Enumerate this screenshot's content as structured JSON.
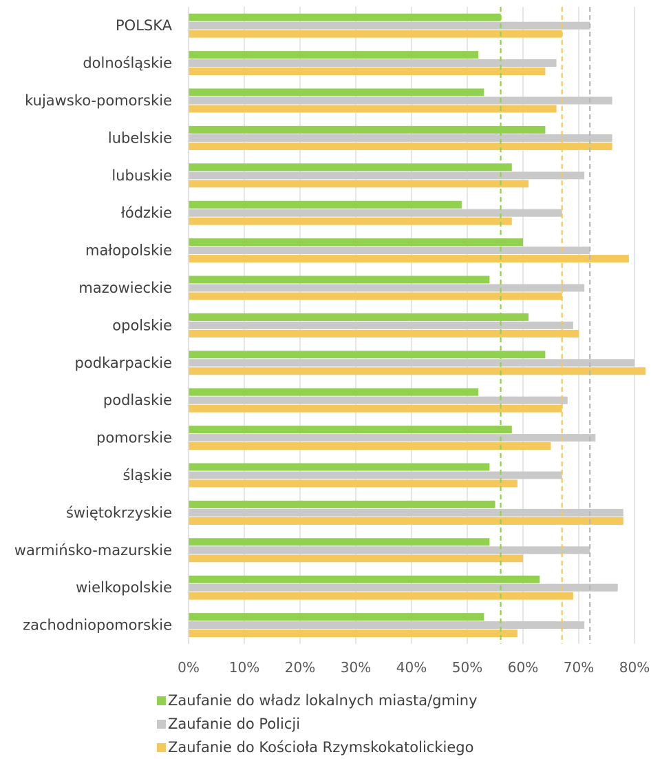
{
  "chart_data": {
    "type": "bar",
    "orientation": "horizontal",
    "categories": [
      "POLSKA",
      "dolnośląskie",
      "kujawsko-pomorskie",
      "lubelskie",
      "lubuskie",
      "łódzkie",
      "małopolskie",
      "mazowieckie",
      "opolskie",
      "podkarpackie",
      "podlaskie",
      "pomorskie",
      "śląskie",
      "świętokrzyskie",
      "warmińsko-mazurskie",
      "wielkopolskie",
      "zachodniopomorskie"
    ],
    "series": [
      {
        "name": "Zaufanie do władz lokalnych miasta/gminy",
        "color": "#92d050",
        "values": [
          56,
          52,
          53,
          64,
          58,
          49,
          60,
          54,
          61,
          64,
          52,
          58,
          54,
          55,
          54,
          63,
          53
        ]
      },
      {
        "name": "Zaufanie do Policji",
        "color": "#c9c9c9",
        "values": [
          72,
          66,
          76,
          76,
          71,
          67,
          72,
          71,
          69,
          80,
          68,
          73,
          67,
          78,
          72,
          77,
          71
        ]
      },
      {
        "name": "Zaufanie do Kościoła Rzymskokatolickiego",
        "color": "#f5c85c",
        "values": [
          67,
          64,
          66,
          76,
          61,
          58,
          79,
          67,
          70,
          82,
          67,
          65,
          59,
          78,
          60,
          69,
          59
        ]
      }
    ],
    "reference_lines": [
      {
        "value": 56,
        "color": "#92d050"
      },
      {
        "value": 67,
        "color": "#f5c85c"
      },
      {
        "value": 72,
        "color": "#b8b8b8"
      }
    ],
    "x_ticks": [
      "0%",
      "10%",
      "20%",
      "30%",
      "40%",
      "50%",
      "60%",
      "70%",
      "80%"
    ],
    "xlim": [
      0,
      82
    ],
    "grid": true,
    "legend_position": "bottom"
  }
}
